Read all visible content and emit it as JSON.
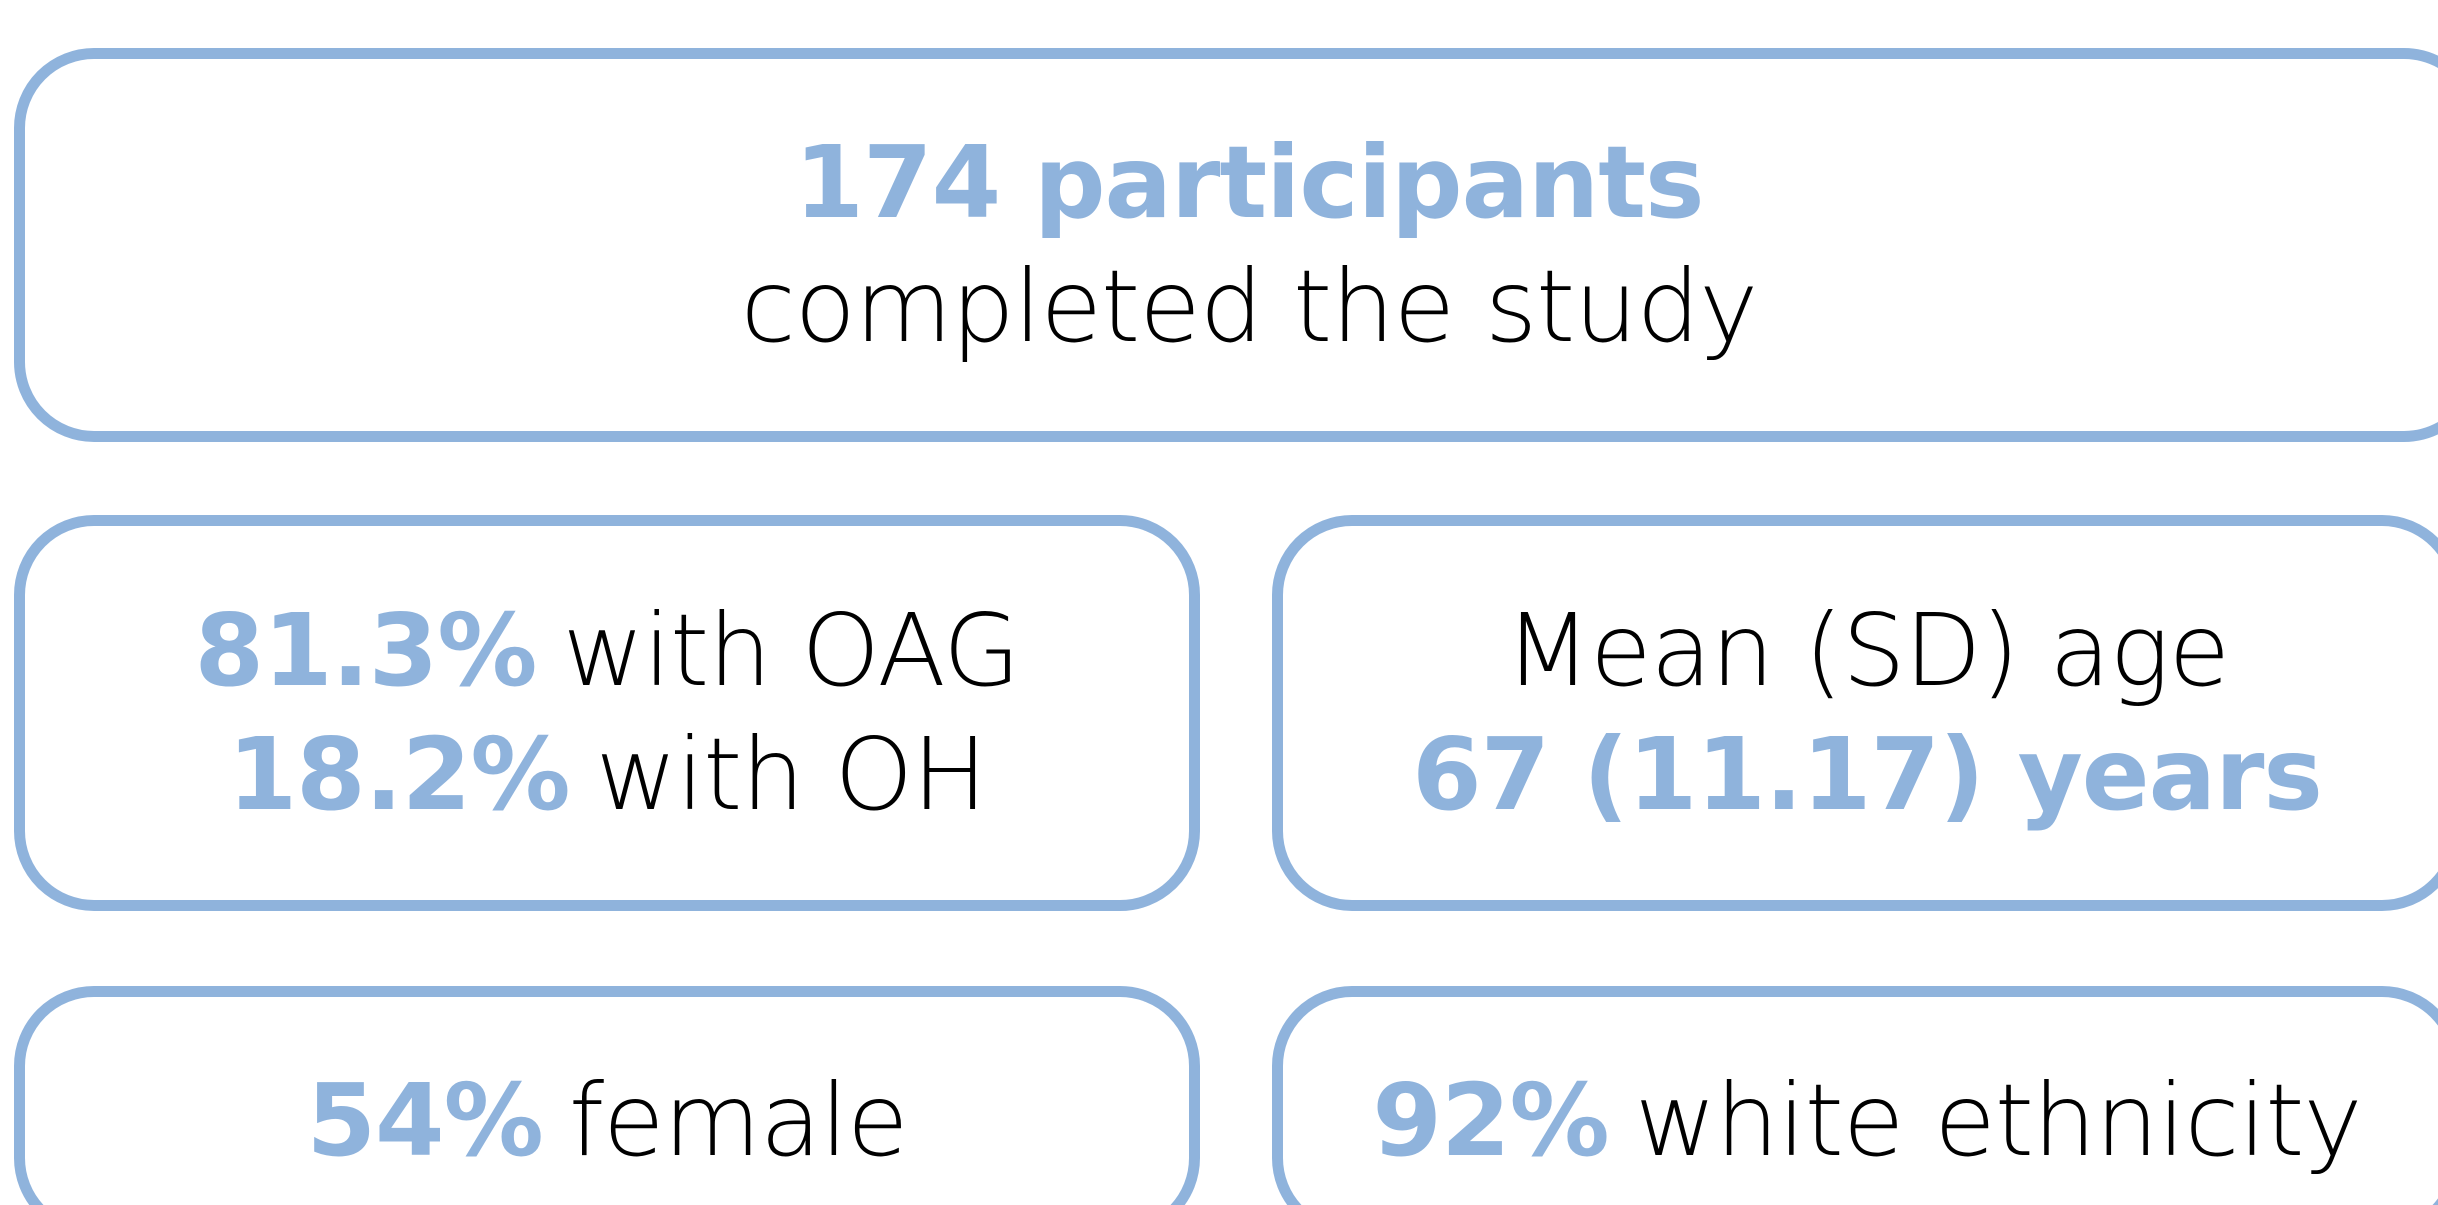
{
  "boxes": [
    {
      "lines": [
        {
          "highlight": "174 participants"
        },
        {
          "text": "completed the study"
        }
      ]
    },
    {
      "lines": [
        {
          "highlight": "81.3%",
          "text": "with OAG"
        },
        {
          "highlight": "18.2%",
          "text": "with OH"
        }
      ]
    },
    {
      "lines": [
        {
          "text": "Mean (SD) age"
        },
        {
          "highlight": "67 (11.17) years"
        }
      ]
    },
    {
      "lines": [
        {
          "highlight": "54%",
          "text": "female"
        }
      ]
    },
    {
      "lines": [
        {
          "highlight": "92%",
          "text": "white ethnicity"
        }
      ]
    }
  ]
}
